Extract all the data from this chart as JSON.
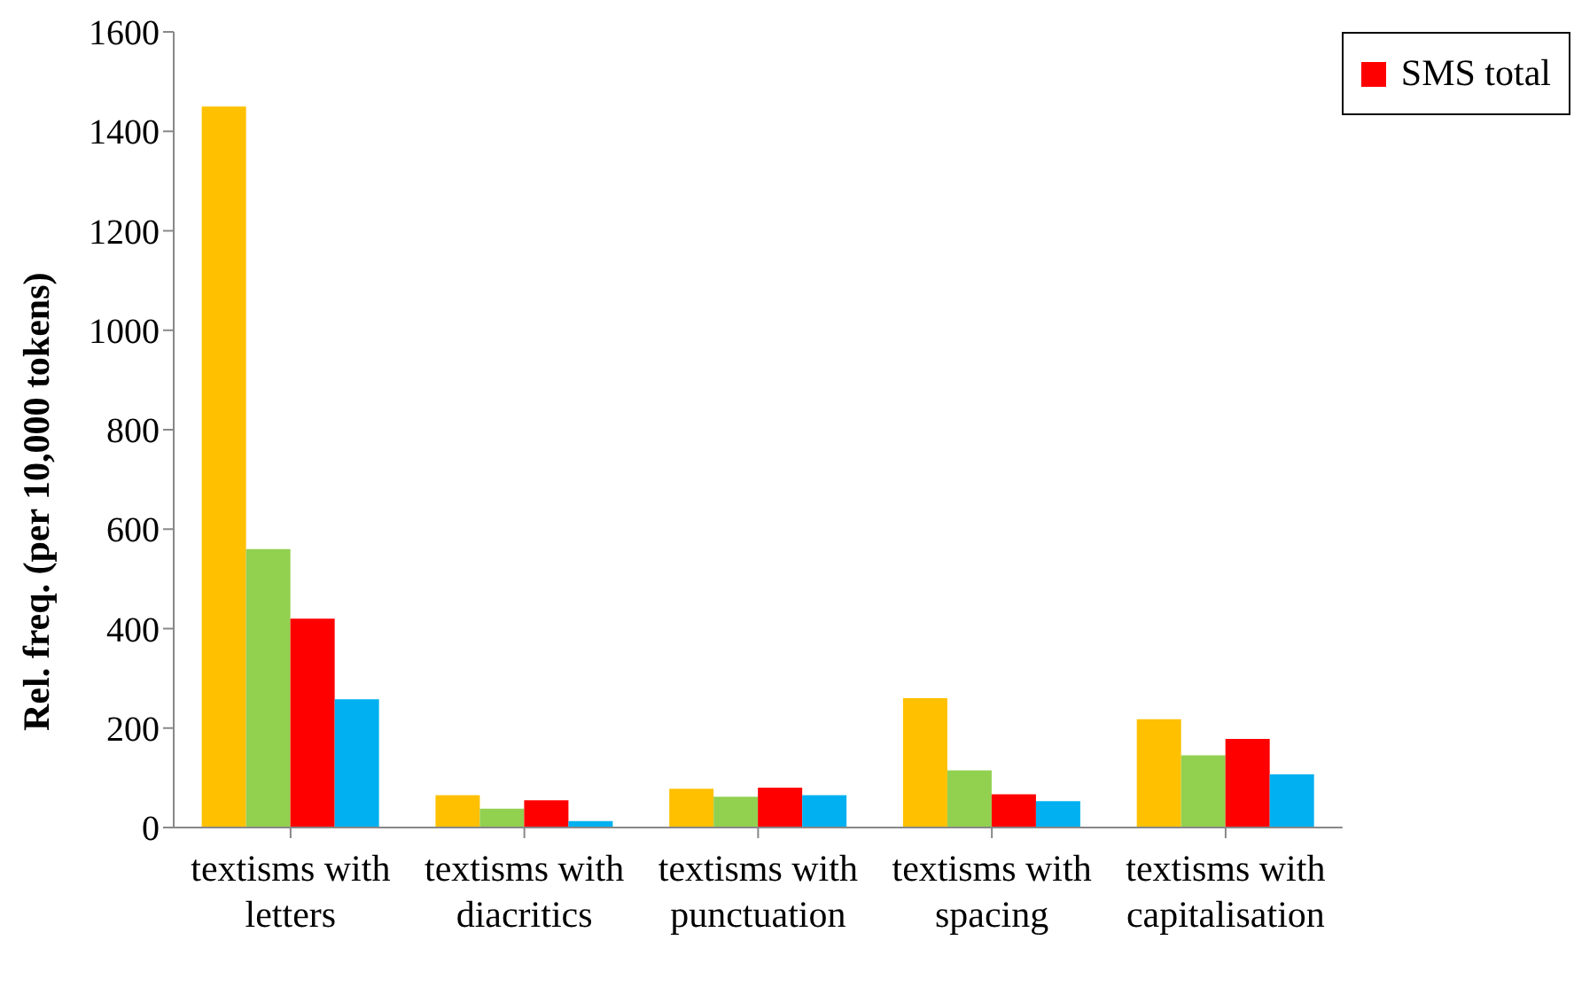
{
  "chart_data": {
    "type": "bar",
    "ylabel": "Rel. freq. (per 10,000 tokens)",
    "categories": [
      "textisms with letters",
      "textisms with diacritics",
      "textisms with punctuation",
      "textisms with spacing",
      "textisms with capitalisation"
    ],
    "series": [
      {
        "color": "#ffc000",
        "values": [
          1450,
          65,
          78,
          260,
          218
        ]
      },
      {
        "color": "#92d050",
        "values": [
          560,
          38,
          62,
          115,
          145
        ]
      },
      {
        "name": "SMS total",
        "color": "#ff0000",
        "values": [
          420,
          55,
          80,
          67,
          178
        ]
      },
      {
        "color": "#00b0f0",
        "values": [
          258,
          13,
          65,
          53,
          107
        ]
      }
    ],
    "ylim": [
      0,
      1600
    ],
    "yticks": [
      0,
      200,
      400,
      600,
      800,
      1000,
      1200,
      1400,
      1600
    ],
    "legend": "top right"
  }
}
